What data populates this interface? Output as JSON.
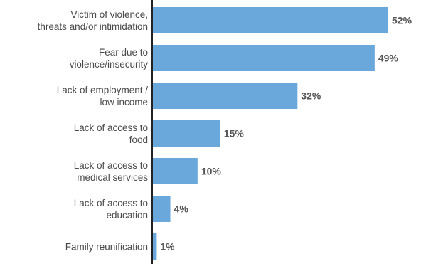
{
  "colors": {
    "bar": "#6aa8dc",
    "axis": "#222222",
    "label": "#4a4a4a",
    "value": "#555555"
  },
  "chart_data": {
    "type": "bar",
    "orientation": "horizontal",
    "categories": [
      [
        "Victim of violence,",
        "threats and/or intimidation"
      ],
      [
        "Fear due to",
        "violence/insecurity"
      ],
      [
        "Lack of employment /",
        "low income"
      ],
      [
        "Lack of access to",
        "food"
      ],
      [
        "Lack of access to",
        "medical services"
      ],
      [
        "Lack of access to",
        "education"
      ],
      [
        "Family reunification"
      ]
    ],
    "values": [
      52,
      49,
      32,
      15,
      10,
      4,
      1
    ],
    "value_labels": [
      "52%",
      "49%",
      "32%",
      "15%",
      "10%",
      "4%",
      "1%"
    ],
    "xlim": [
      0,
      52
    ],
    "grid": false,
    "legend": "none"
  }
}
